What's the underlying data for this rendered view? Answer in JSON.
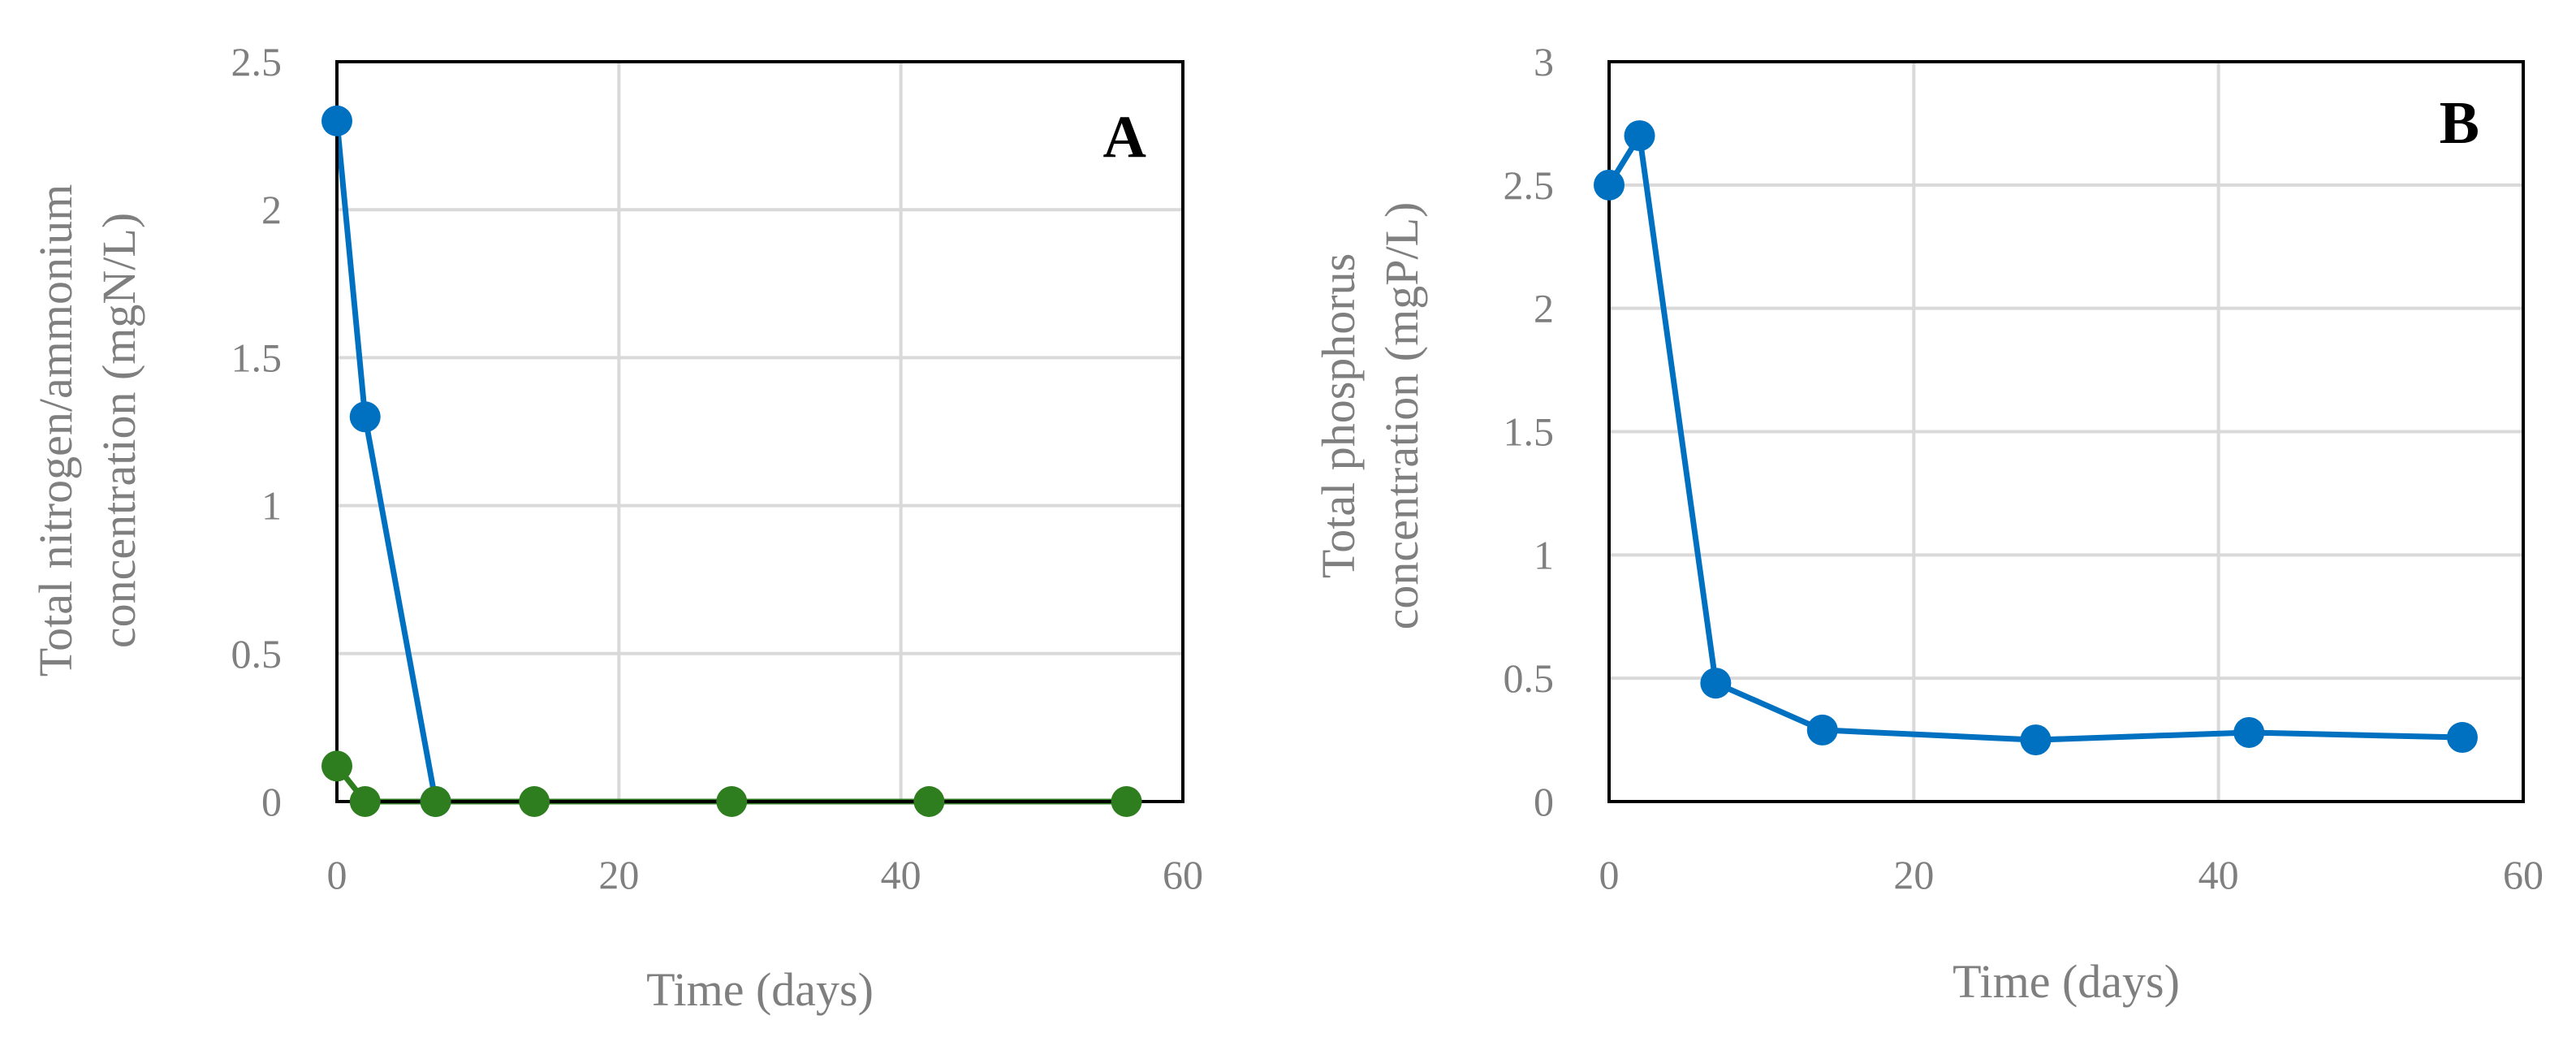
{
  "chart_data": [
    {
      "type": "line",
      "panel_label": "A",
      "xlabel": "Time (days)",
      "ylabel_lines": [
        "Total nitrogen/ammonium",
        "concentration (mgN/L)"
      ],
      "xlim": [
        0,
        60
      ],
      "ylim": [
        0,
        2.5
      ],
      "x_ticks": [
        "0",
        "20",
        "40",
        "60"
      ],
      "y_ticks": [
        "0",
        "0.5",
        "1",
        "1.5",
        "2",
        "2.5"
      ],
      "grid": true,
      "series": [
        {
          "color": "#0070c0",
          "x": [
            0,
            2,
            7
          ],
          "y": [
            2.3,
            1.3,
            0
          ]
        },
        {
          "color": "#2e7d1e",
          "x": [
            0,
            2,
            7,
            14,
            28,
            42,
            56
          ],
          "y": [
            0.12,
            0,
            0,
            0,
            0,
            0,
            0
          ]
        }
      ]
    },
    {
      "type": "line",
      "panel_label": "B",
      "xlabel": "Time (days)",
      "ylabel_lines": [
        "Total phosphorus",
        "concentration (mgP/L)"
      ],
      "xlim": [
        0,
        60
      ],
      "ylim": [
        0,
        3
      ],
      "x_ticks": [
        "0",
        "20",
        "40",
        "60"
      ],
      "y_ticks": [
        "0",
        "0.5",
        "1",
        "1.5",
        "2",
        "2.5",
        "3"
      ],
      "grid": true,
      "series": [
        {
          "color": "#0070c0",
          "x": [
            0,
            2,
            7,
            14,
            28,
            42,
            56
          ],
          "y": [
            2.5,
            2.7,
            0.48,
            0.29,
            0.25,
            0.28,
            0.26
          ]
        }
      ]
    }
  ]
}
